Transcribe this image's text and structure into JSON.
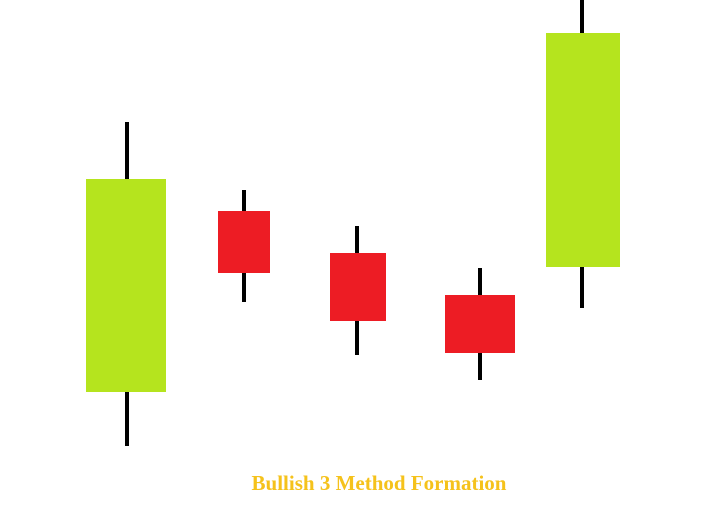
{
  "title": "Bullish 3 Method Formation"
}
